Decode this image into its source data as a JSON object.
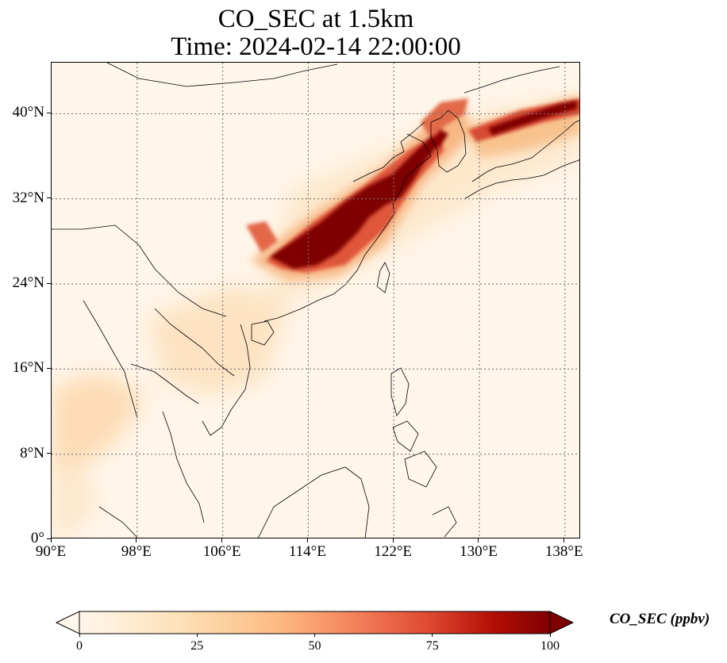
{
  "map": {
    "title_line1": "CO_SEC at 1.5km",
    "title_line2": "Time: 2024-02-14 22:00:00",
    "extent": {
      "lon_min": 90,
      "lon_max": 139.5,
      "lat_min": 0,
      "lat_max": 44.8
    },
    "lon_ticks": [
      {
        "value": 90,
        "label": "90°E"
      },
      {
        "value": 98,
        "label": "98°E"
      },
      {
        "value": 106,
        "label": "106°E"
      },
      {
        "value": 114,
        "label": "114°E"
      },
      {
        "value": 122,
        "label": "122°E"
      },
      {
        "value": 130,
        "label": "130°E"
      },
      {
        "value": 138,
        "label": "138°E"
      }
    ],
    "lat_ticks": [
      {
        "value": 0,
        "label": "0°"
      },
      {
        "value": 8,
        "label": "8°N"
      },
      {
        "value": 16,
        "label": "16°N"
      },
      {
        "value": 24,
        "label": "24°N"
      },
      {
        "value": 32,
        "label": "32°N"
      },
      {
        "value": 40,
        "label": "40°N"
      }
    ],
    "gridlines": "dotted",
    "colorbar": {
      "label": "CO_SEC (ppbv)",
      "colormap": "OrRd",
      "min": 0,
      "max": 100,
      "extend": "both",
      "ticks": [
        {
          "value": 0,
          "label": "0"
        },
        {
          "value": 25,
          "label": "25"
        },
        {
          "value": 50,
          "label": "50"
        },
        {
          "value": 75,
          "label": "75"
        },
        {
          "value": 100,
          "label": "100"
        }
      ]
    },
    "colors": {
      "background_low": "#fff6ea",
      "low": "#fdd9a8",
      "mid": "#f49c6b",
      "high": "#d7301f",
      "max": "#7f0000",
      "coastline": "#000000",
      "grid": "#777777"
    }
  }
}
